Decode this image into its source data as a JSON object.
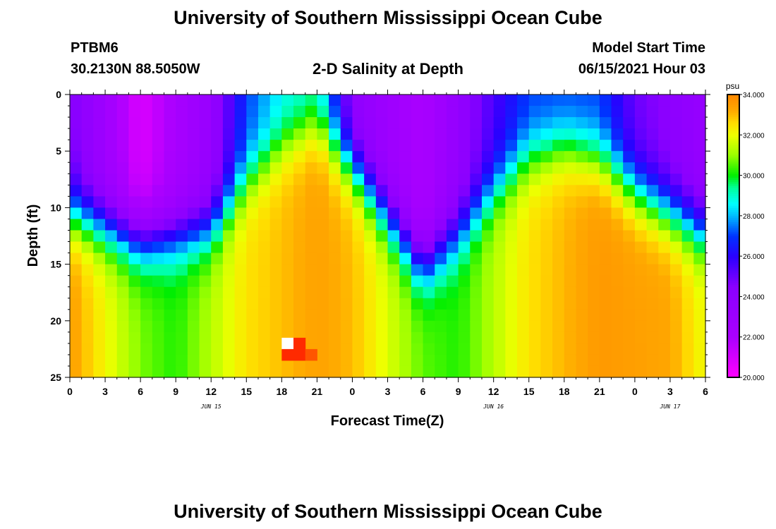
{
  "header": {
    "title_top": "University of Southern Mississippi Ocean Cube",
    "title_bottom": "University of Southern Mississippi Ocean Cube",
    "station": "PTBM6",
    "coords": "30.2130N  88.5050W",
    "plot_title": "2-D Salinity at Depth",
    "start_label": "Model Start Time",
    "start_value": "06/15/2021 Hour 03"
  },
  "chart_data": {
    "type": "heatmap",
    "title": "2-D Salinity at Depth",
    "xlabel": "Forecast Time(Z)",
    "ylabel": "Depth (ft)",
    "x_tick_labels": [
      "0",
      "3",
      "6",
      "9",
      "12",
      "15",
      "18",
      "21",
      "0",
      "3",
      "6",
      "9",
      "12",
      "15",
      "18",
      "21",
      "0",
      "3",
      "6"
    ],
    "x_range_hours": [
      0,
      54
    ],
    "date_labels": [
      {
        "text": "JUN 15",
        "hour": 12
      },
      {
        "text": "JUN 16",
        "hour": 36
      },
      {
        "text": "JUN 17",
        "hour": 51
      }
    ],
    "y_range": [
      0,
      25
    ],
    "y_ticks": [
      0,
      5,
      10,
      15,
      20,
      25
    ],
    "y_tick_labels": [
      "0",
      "5",
      "10",
      "15",
      "20",
      "25"
    ],
    "colorbar": {
      "unit": "psu",
      "min": 20,
      "max": 34,
      "tick_values": [
        20,
        22,
        24,
        26,
        28,
        30,
        32,
        34
      ],
      "tick_labels": [
        "20.000",
        "22.000",
        "24.000",
        "26.000",
        "28.000",
        "30.000",
        "32.000",
        "34.000"
      ]
    },
    "colormap_stops": [
      {
        "v": 20.0,
        "color": "#ff00ff"
      },
      {
        "v": 22.0,
        "color": "#aa00ff"
      },
      {
        "v": 24.5,
        "color": "#8a00ff"
      },
      {
        "v": 26.0,
        "color": "#2a00ff"
      },
      {
        "v": 27.0,
        "color": "#0033ff"
      },
      {
        "v": 28.0,
        "color": "#00bbff"
      },
      {
        "v": 28.6,
        "color": "#00ffff"
      },
      {
        "v": 29.4,
        "color": "#00ff99"
      },
      {
        "v": 30.0,
        "color": "#00ee00"
      },
      {
        "v": 31.0,
        "color": "#99ff00"
      },
      {
        "v": 32.0,
        "color": "#eeff00"
      },
      {
        "v": 32.6,
        "color": "#ffdd00"
      },
      {
        "v": 33.2,
        "color": "#ffaa00"
      },
      {
        "v": 34.0,
        "color": "#ff8800"
      }
    ],
    "surface_salinity_psu": [
      {
        "hour": 0,
        "psu": 24.8
      },
      {
        "hour": 6,
        "psu": 20.8
      },
      {
        "hour": 12,
        "psu": 23.5
      },
      {
        "hour": 15,
        "psu": 27.0
      },
      {
        "hour": 18,
        "psu": 28.5
      },
      {
        "hour": 21,
        "psu": 28.8
      },
      {
        "hour": 24,
        "psu": 24.0
      },
      {
        "hour": 30,
        "psu": 22.0
      },
      {
        "hour": 36,
        "psu": 25.5
      },
      {
        "hour": 39,
        "psu": 27.0
      },
      {
        "hour": 42,
        "psu": 27.0
      },
      {
        "hour": 45,
        "psu": 27.0
      },
      {
        "hour": 48,
        "psu": 25.0
      },
      {
        "hour": 54,
        "psu": 23.5
      }
    ],
    "bottom_salinity_psu": [
      {
        "hour": 0,
        "psu": 33.5
      },
      {
        "hour": 6,
        "psu": 30.8
      },
      {
        "hour": 9,
        "psu": 30.2
      },
      {
        "hour": 15,
        "psu": 32.5
      },
      {
        "hour": 21,
        "psu": 33.4
      },
      {
        "hour": 24,
        "psu": 33.0
      },
      {
        "hour": 30,
        "psu": 30.6
      },
      {
        "hour": 33,
        "psu": 30.2
      },
      {
        "hour": 39,
        "psu": 32.5
      },
      {
        "hour": 45,
        "psu": 33.6
      },
      {
        "hour": 51,
        "psu": 33.3
      },
      {
        "hour": 54,
        "psu": 32.0
      }
    ],
    "halocline_depth_ft": [
      {
        "hour": 0,
        "ft": 8
      },
      {
        "hour": 6,
        "ft": 10.5
      },
      {
        "hour": 12,
        "ft": 9.5
      },
      {
        "hour": 15,
        "ft": 5
      },
      {
        "hour": 18,
        "ft": 2
      },
      {
        "hour": 21,
        "ft": 0
      },
      {
        "hour": 24,
        "ft": 4
      },
      {
        "hour": 30,
        "ft": 13
      },
      {
        "hour": 33,
        "ft": 10
      },
      {
        "hour": 36,
        "ft": 6
      },
      {
        "hour": 39,
        "ft": 3
      },
      {
        "hour": 42,
        "ft": 2
      },
      {
        "hour": 45,
        "ft": 3
      },
      {
        "hour": 48,
        "ft": 6
      },
      {
        "hour": 54,
        "ft": 10
      }
    ],
    "extreme_cells": [
      {
        "hour": 18,
        "depth_ft": 22,
        "psu": 35.0,
        "color": "#ffffff"
      },
      {
        "hour": 19,
        "depth_ft": 22,
        "psu": 34.5,
        "color": "#ff2a00"
      },
      {
        "hour": 18,
        "depth_ft": 23,
        "psu": 34.5,
        "color": "#ff2a00"
      },
      {
        "hour": 19,
        "depth_ft": 23,
        "psu": 34.5,
        "color": "#ff2a00"
      },
      {
        "hour": 20,
        "depth_ft": 23,
        "psu": 34.3,
        "color": "#ff5500"
      }
    ]
  }
}
